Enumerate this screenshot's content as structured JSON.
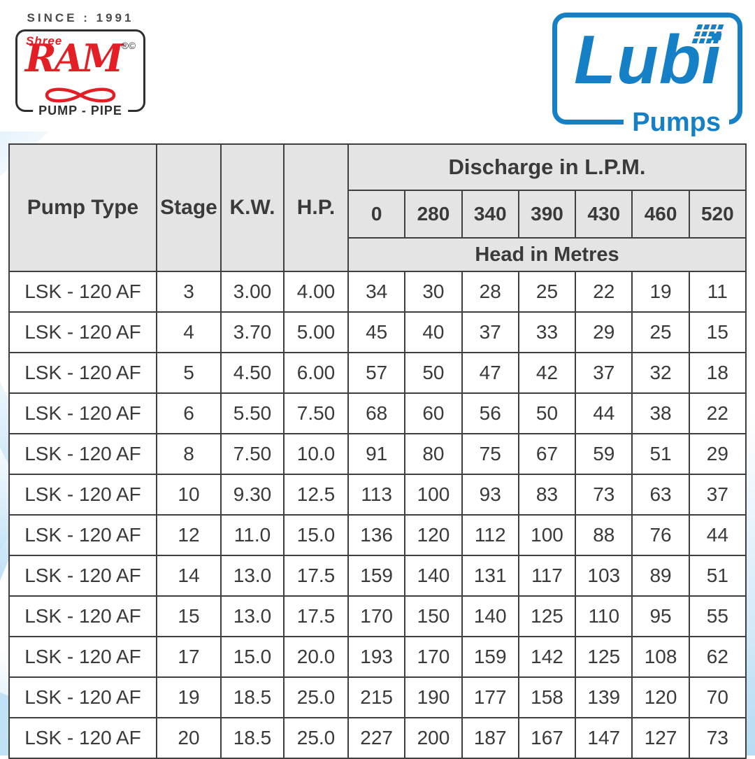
{
  "branding": {
    "shree_ram": {
      "since_text": "SINCE : 1991",
      "name_top": "Shree",
      "name_main": "RAM",
      "trademark": "®©",
      "name_bottom": "PUMP - PIPE",
      "red": "#e31e24",
      "dark": "#2f2f2f"
    },
    "lubi": {
      "name": "Lubi",
      "subtitle": "Pumps",
      "blue": "#1580c5"
    }
  },
  "table": {
    "header": {
      "pump_type": "Pump Type",
      "stage": "Stage",
      "kw": "K.W.",
      "hp": "H.P.",
      "discharge_title": "Discharge in L.P.M.",
      "discharge_values": [
        "0",
        "280",
        "340",
        "390",
        "430",
        "460",
        "520"
      ],
      "head_title": "Head in Metres"
    },
    "bold_head_columns": [
      2,
      3
    ],
    "colors": {
      "header_bg": "#e4e4e4",
      "border": "#3f3f3f",
      "text": "#3a3a3c"
    },
    "rows": [
      {
        "pump_type": "LSK - 120 AF",
        "stage": "3",
        "kw": "3.00",
        "hp": "4.00",
        "heads": [
          "34",
          "30",
          "28",
          "25",
          "22",
          "19",
          "11"
        ]
      },
      {
        "pump_type": "LSK - 120 AF",
        "stage": "4",
        "kw": "3.70",
        "hp": "5.00",
        "heads": [
          "45",
          "40",
          "37",
          "33",
          "29",
          "25",
          "15"
        ]
      },
      {
        "pump_type": "LSK - 120 AF",
        "stage": "5",
        "kw": "4.50",
        "hp": "6.00",
        "heads": [
          "57",
          "50",
          "47",
          "42",
          "37",
          "32",
          "18"
        ]
      },
      {
        "pump_type": "LSK - 120 AF",
        "stage": "6",
        "kw": "5.50",
        "hp": "7.50",
        "heads": [
          "68",
          "60",
          "56",
          "50",
          "44",
          "38",
          "22"
        ]
      },
      {
        "pump_type": "LSK - 120 AF",
        "stage": "8",
        "kw": "7.50",
        "hp": "10.0",
        "heads": [
          "91",
          "80",
          "75",
          "67",
          "59",
          "51",
          "29"
        ]
      },
      {
        "pump_type": "LSK - 120 AF",
        "stage": "10",
        "kw": "9.30",
        "hp": "12.5",
        "heads": [
          "113",
          "100",
          "93",
          "83",
          "73",
          "63",
          "37"
        ]
      },
      {
        "pump_type": "LSK - 120 AF",
        "stage": "12",
        "kw": "11.0",
        "hp": "15.0",
        "heads": [
          "136",
          "120",
          "112",
          "100",
          "88",
          "76",
          "44"
        ]
      },
      {
        "pump_type": "LSK - 120 AF",
        "stage": "14",
        "kw": "13.0",
        "hp": "17.5",
        "heads": [
          "159",
          "140",
          "131",
          "117",
          "103",
          "89",
          "51"
        ]
      },
      {
        "pump_type": "LSK - 120 AF",
        "stage": "15",
        "kw": "13.0",
        "hp": "17.5",
        "heads": [
          "170",
          "150",
          "140",
          "125",
          "110",
          "95",
          "55"
        ]
      },
      {
        "pump_type": "LSK - 120 AF",
        "stage": "17",
        "kw": "15.0",
        "hp": "20.0",
        "heads": [
          "193",
          "170",
          "159",
          "142",
          "125",
          "108",
          "62"
        ]
      },
      {
        "pump_type": "LSK - 120 AF",
        "stage": "19",
        "kw": "18.5",
        "hp": "25.0",
        "heads": [
          "215",
          "190",
          "177",
          "158",
          "139",
          "120",
          "70"
        ]
      },
      {
        "pump_type": "LSK - 120 AF",
        "stage": "20",
        "kw": "18.5",
        "hp": "25.0",
        "heads": [
          "227",
          "200",
          "187",
          "167",
          "147",
          "127",
          "73"
        ]
      }
    ]
  }
}
